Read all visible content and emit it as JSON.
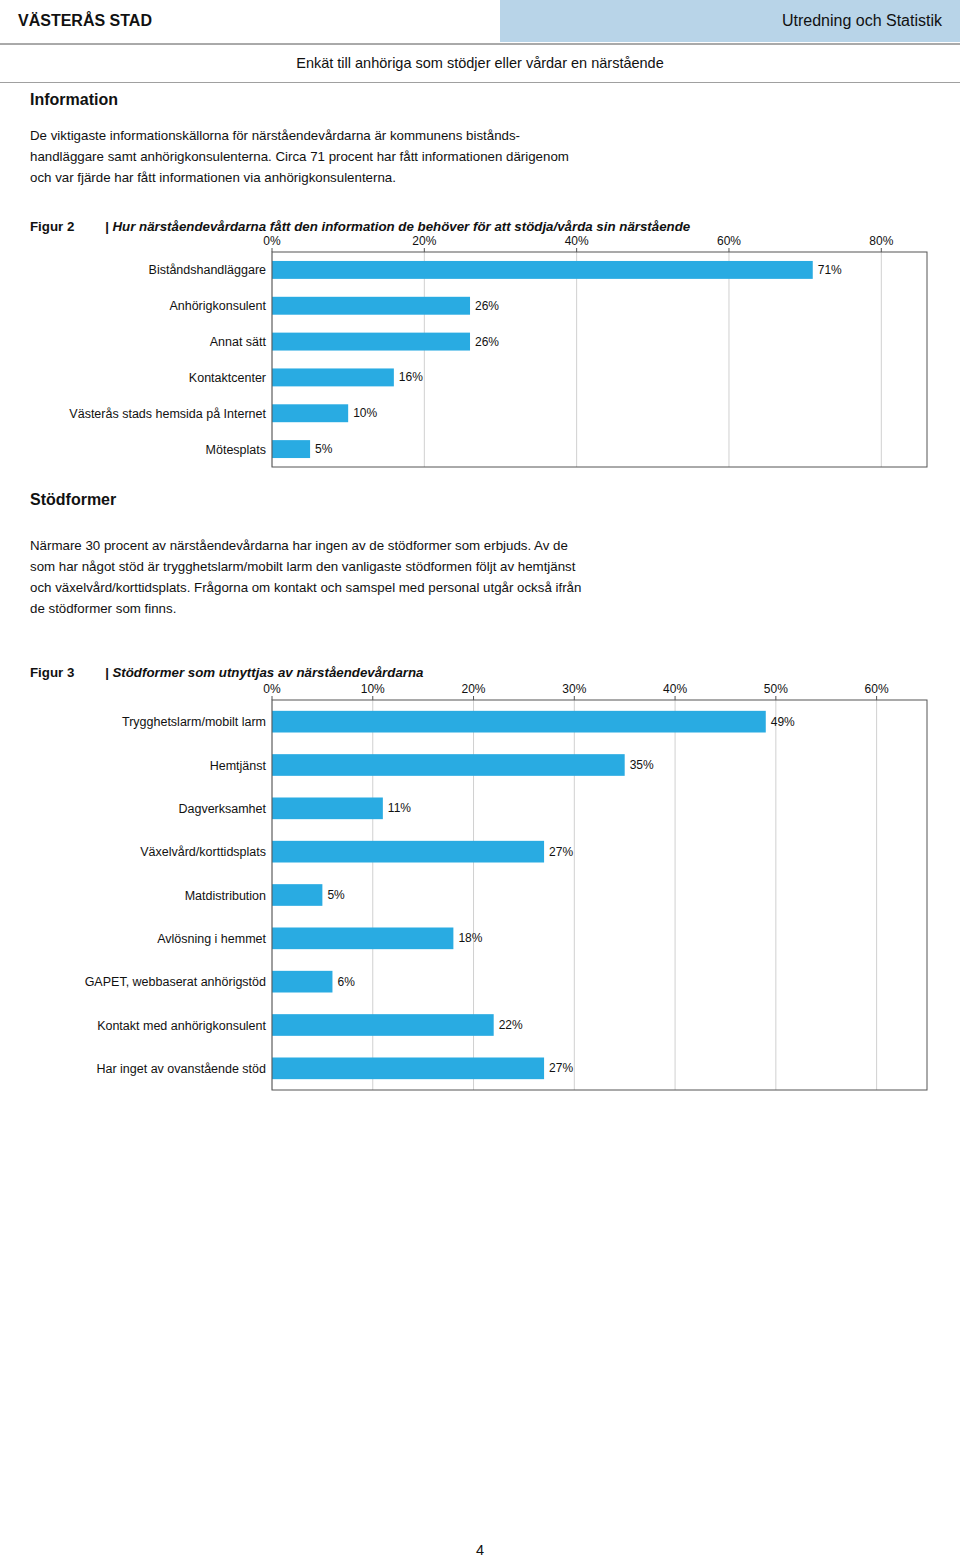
{
  "header_left": "VÄSTERÅS STAD",
  "header_right": "Utredning och Statistik",
  "header_color": "#b8d4e8",
  "subtitle": "Enkät till anhöriga som stödjer eller vårdar en närstående",
  "sections": [
    {
      "title": "Information",
      "text": "De viktigaste informationskällorna för närståendevårdarna är kommunens bistånds-\nhandläggare samt anhörigkonsulenterna. Circa 71 procent har fått informationen därigenom\noch var fjärde har fått informationen via anhörigkonsulenterna."
    },
    {
      "title": "Stödformer",
      "text": "Närmare 30 procent av närståendevårdarna har ingen av de stödformer som erbjuds. Av de\nsom har något stöd är trygghetslarm/mobilt larm den vanligaste stödformen följt av hemtjänst\noch växelvård/korttidsplats. Frågorna om kontakt och samspel med personal utgår också ifrån\nde stödformer som finns."
    }
  ],
  "page_number": "4",
  "chart_data": [
    {
      "type": "bar",
      "orientation": "horizontal",
      "title": "Figur 2",
      "subtitle": "| Hur närståendevårdarna fått den information de behöver för att stödja/vårda sin närstående",
      "categories": [
        "Biståndshandläggare",
        "Anhörigkonsulent",
        "Annat sätt",
        "Kontaktcenter",
        "Västerås stads hemsida på Internet",
        "Mötesplats"
      ],
      "values": [
        71,
        26,
        26,
        16,
        10,
        5
      ],
      "value_labels": [
        "71%",
        "26%",
        "26%",
        "16%",
        "10%",
        "5%"
      ],
      "color": "#29abe2",
      "xlim": [
        0,
        86
      ],
      "xticks": [
        {
          "value": 0,
          "label": "0%"
        },
        {
          "value": 20,
          "label": "20%"
        },
        {
          "value": 40,
          "label": "40%"
        },
        {
          "value": 60,
          "label": "60%"
        },
        {
          "value": 80,
          "label": "80%"
        }
      ],
      "grid": true,
      "data_labels": true
    },
    {
      "type": "bar",
      "orientation": "horizontal",
      "title": "Figur 3",
      "subtitle": "| Stödformer som utnyttjas av närståendevårdarna",
      "categories": [
        "Trygghetslarm/mobilt larm",
        "Hemtjänst",
        "Dagverksamhet",
        "Växelvård/korttidsplats",
        "Matdistribution",
        "Avlösning i hemmet",
        "GAPET, webbaserat anhörigstöd",
        "Kontakt med anhörigkonsulent",
        "Har inget av ovanstående stöd"
      ],
      "values": [
        49,
        35,
        11,
        27,
        5,
        18,
        6,
        22,
        27
      ],
      "value_labels": [
        "49%",
        "35%",
        "11%",
        "27%",
        "5%",
        "18%",
        "6%",
        "22%",
        "27%"
      ],
      "color": "#29abe2",
      "xlim": [
        0,
        65
      ],
      "xticks": [
        {
          "value": 0,
          "label": "0%"
        },
        {
          "value": 10,
          "label": "10%"
        },
        {
          "value": 20,
          "label": "20%"
        },
        {
          "value": 30,
          "label": "30%"
        },
        {
          "value": 40,
          "label": "40%"
        },
        {
          "value": 50,
          "label": "50%"
        },
        {
          "value": 60,
          "label": "60%"
        }
      ],
      "grid": true,
      "data_labels": true
    }
  ]
}
